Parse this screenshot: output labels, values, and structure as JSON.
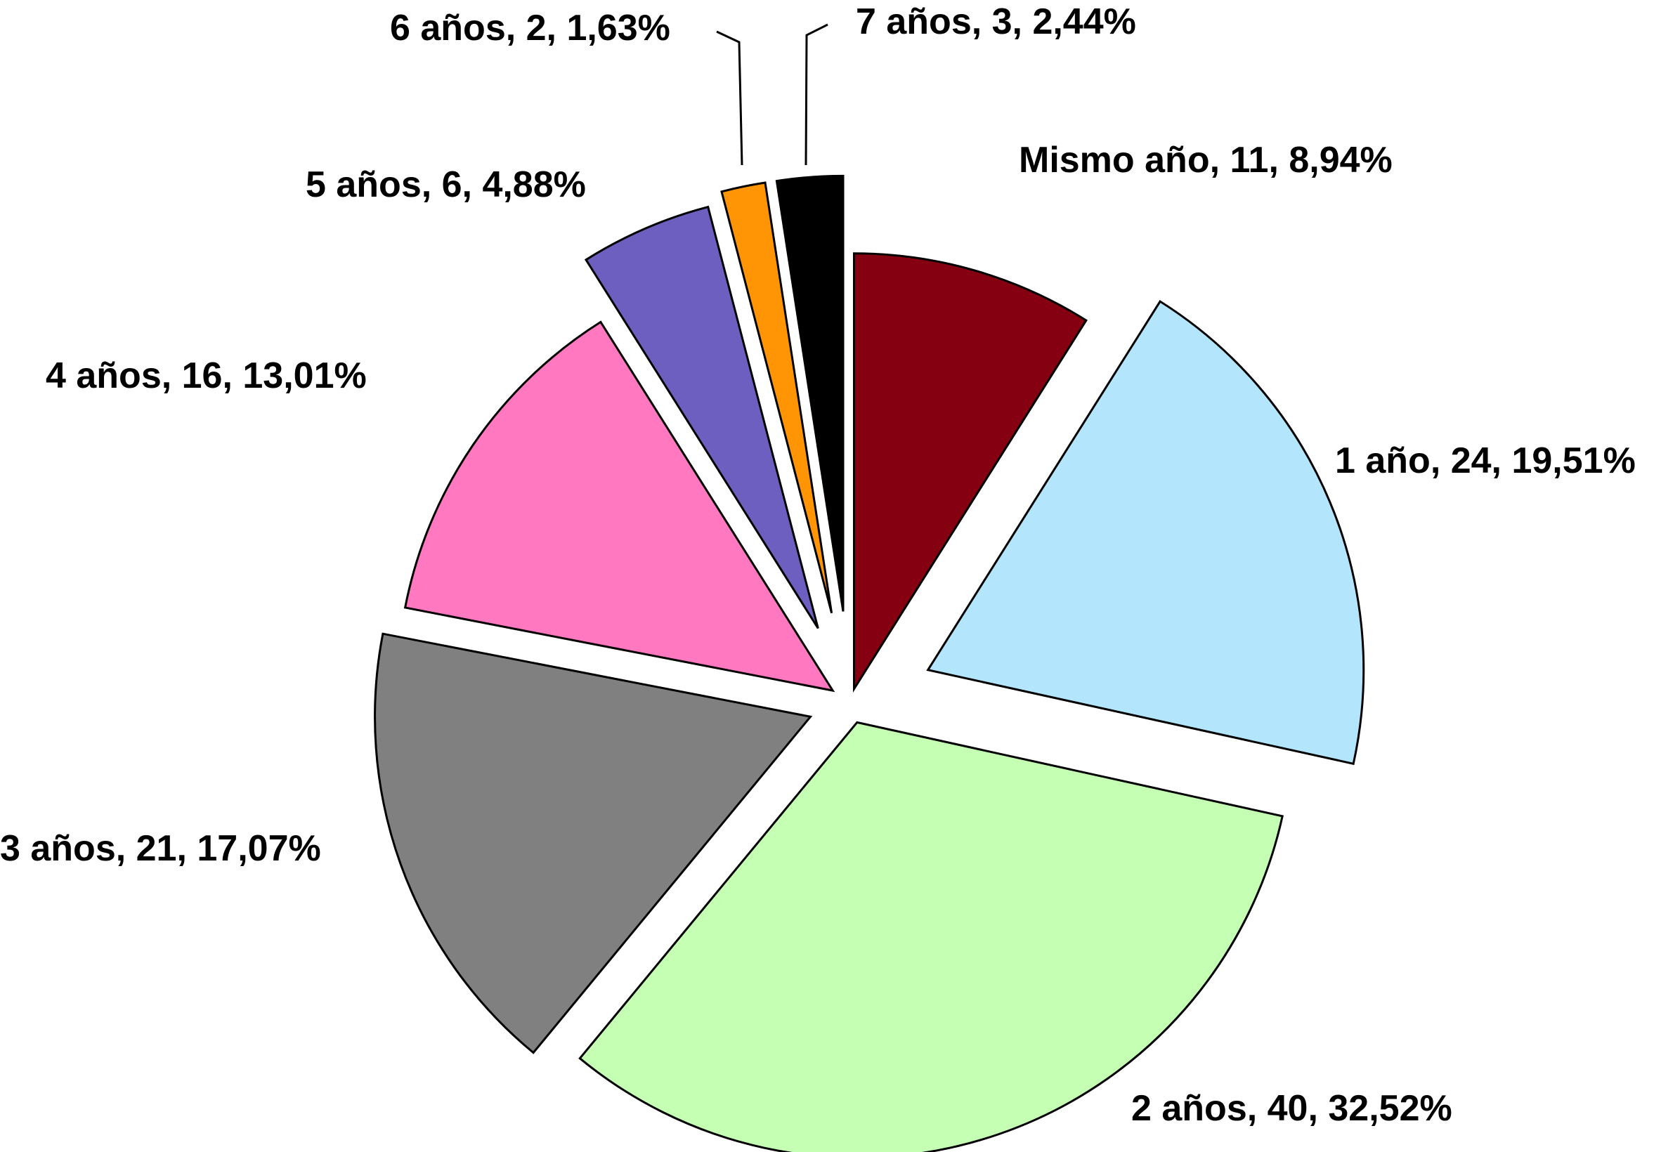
{
  "chart_data": {
    "type": "pie",
    "exploded": true,
    "start_angle": "12 o'clock",
    "direction": "clockwise",
    "slices": [
      {
        "category": "Mismo año",
        "value": 11,
        "percent": "8,94%",
        "label": "Mismo año, 11, 8,94%",
        "color": "#850011"
      },
      {
        "category": "1 año",
        "value": 24,
        "percent": "19,51%",
        "label": "1 año, 24, 19,51%",
        "color": "#b3e5fc"
      },
      {
        "category": "2 años",
        "value": 40,
        "percent": "32,52%",
        "label": "2 años, 40, 32,52%",
        "color": "#c4ffb4"
      },
      {
        "category": "3 años",
        "value": 21,
        "percent": "17,07%",
        "label": "3 años, 21, 17,07%",
        "color": "#808080"
      },
      {
        "category": "4 años",
        "value": 16,
        "percent": "13,01%",
        "label": "4 años, 16, 13,01%",
        "color": "#ff78c0"
      },
      {
        "category": "5 años",
        "value": 6,
        "percent": "4,88%",
        "label": "5 años, 6, 4,88%",
        "color": "#6c5fbf"
      },
      {
        "category": "6 años",
        "value": 2,
        "percent": "1,63%",
        "label": "6 años, 2, 1,63%",
        "color": "#ff9405"
      },
      {
        "category": "7 años",
        "value": 3,
        "percent": "2,44%",
        "label": "7 años, 3, 2,44%",
        "color": "#000000"
      }
    ]
  }
}
